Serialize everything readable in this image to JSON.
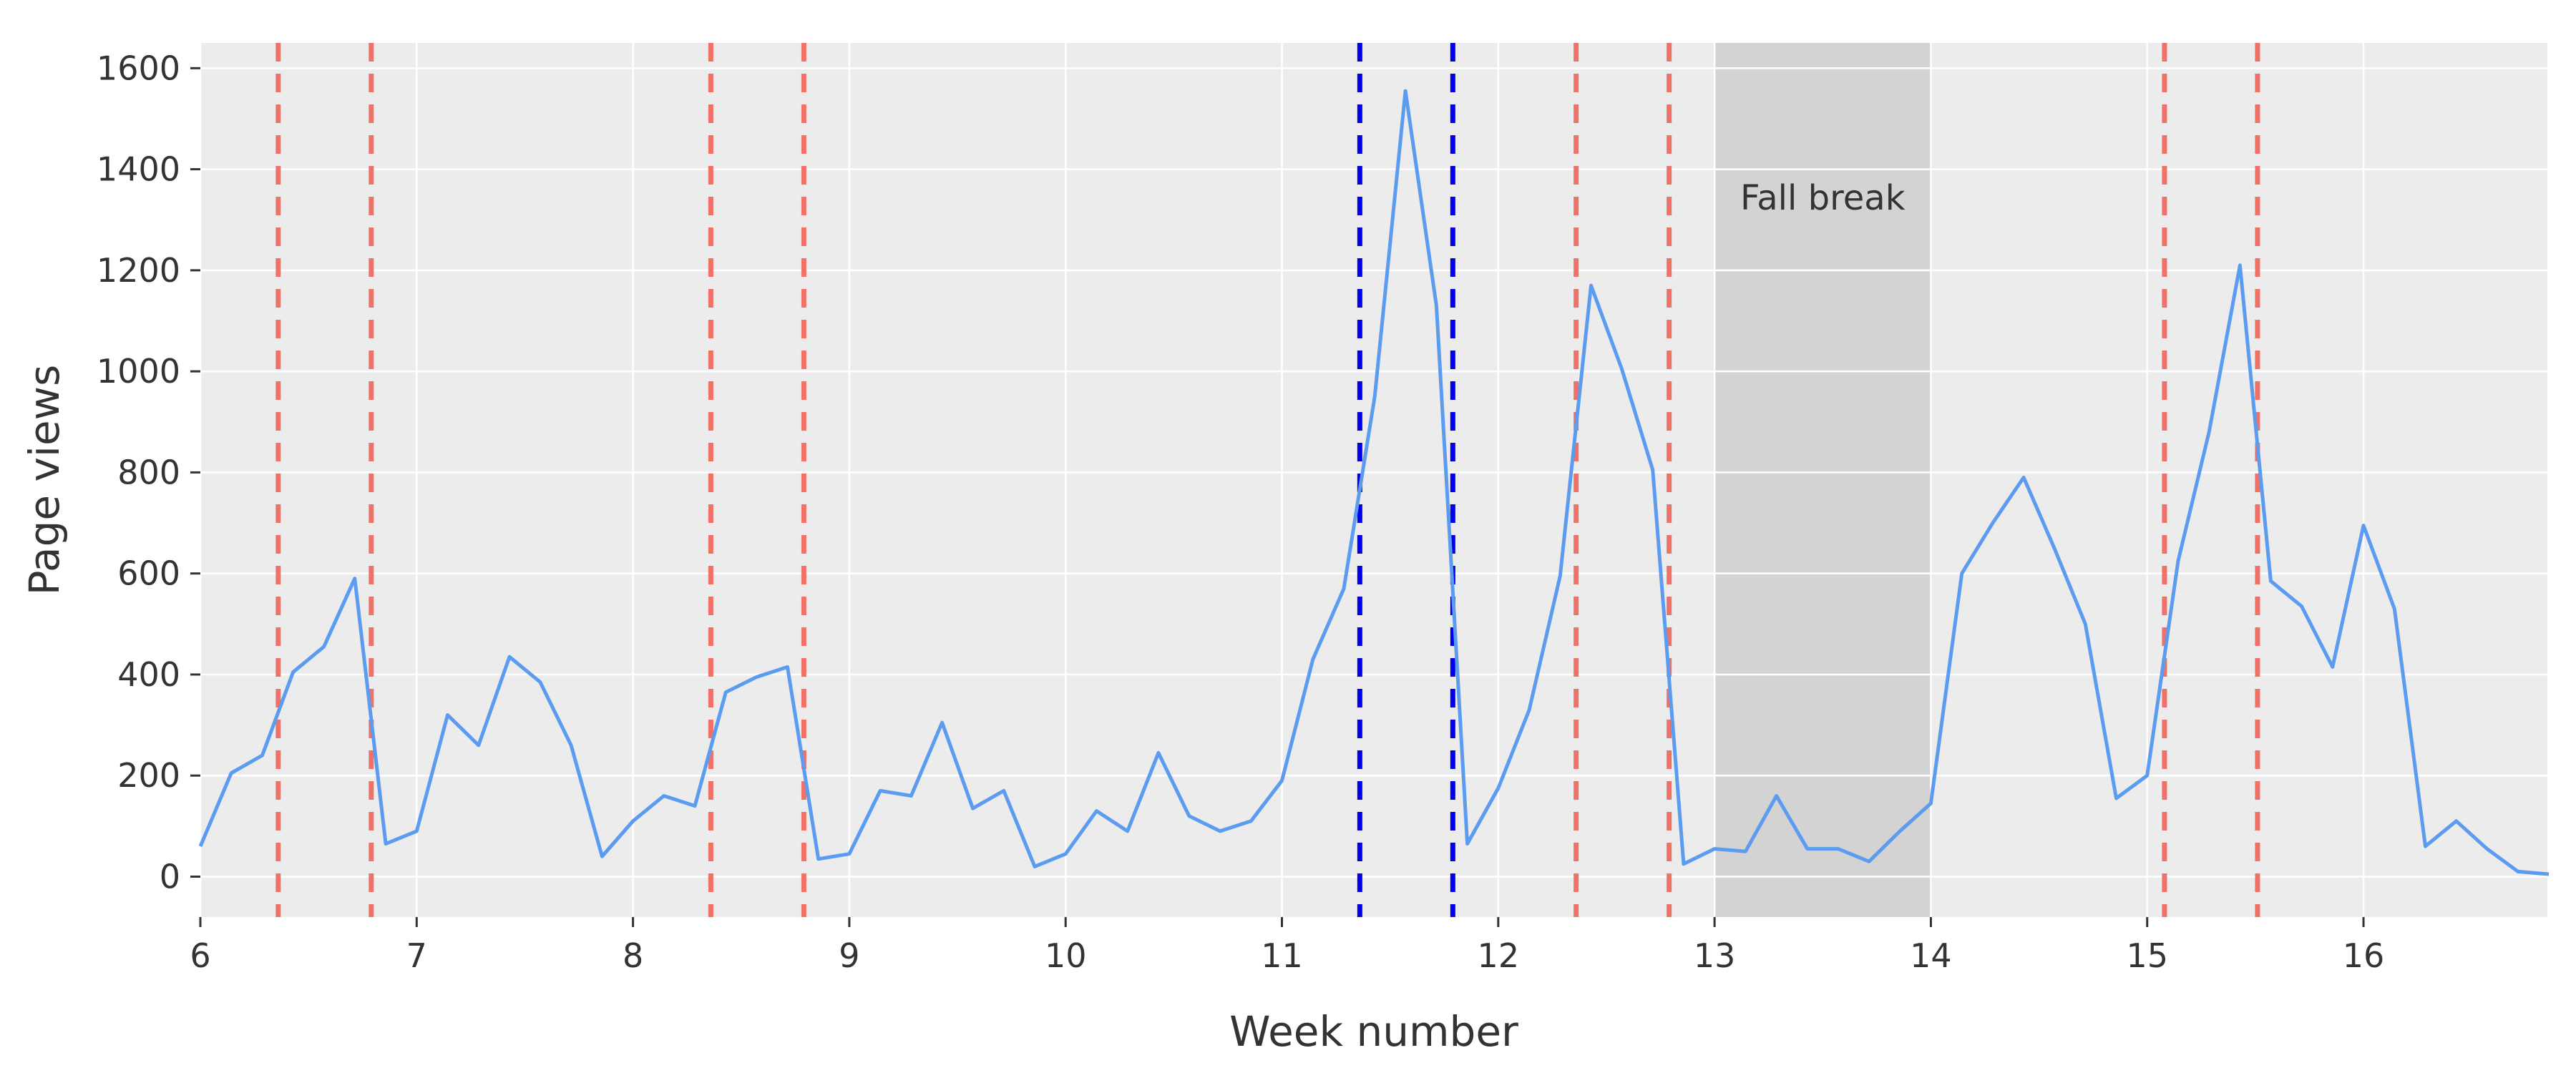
{
  "chart_data": {
    "type": "line",
    "title": "",
    "xlabel": "Week number",
    "ylabel": "Page views",
    "xlim": [
      6,
      16.85
    ],
    "ylim": [
      -80,
      1650
    ],
    "x_ticks": [
      6,
      7,
      8,
      9,
      10,
      11,
      12,
      13,
      14,
      15,
      16
    ],
    "y_ticks": [
      0,
      200,
      400,
      600,
      800,
      1000,
      1200,
      1400,
      1600
    ],
    "grid": true,
    "legend": "none",
    "colors": {
      "panel_background": "#ececec",
      "grid": "#ffffff",
      "line": "#5b9bf0",
      "red_marker": "#f07167",
      "blue_marker": "#0000ee",
      "shade": "#d3d3d3"
    },
    "series": [
      {
        "x": [
          6.0,
          6.143,
          6.286,
          6.429,
          6.571,
          6.714,
          6.857,
          7.0,
          7.143,
          7.286,
          7.429,
          7.571,
          7.714,
          7.857,
          8.0,
          8.143,
          8.286,
          8.429,
          8.571,
          8.714,
          8.857,
          9.0,
          9.143,
          9.286,
          9.429,
          9.571,
          9.714,
          9.857,
          10.0,
          10.143,
          10.286,
          10.429,
          10.571,
          10.714,
          10.857,
          11.0,
          11.143,
          11.286,
          11.429,
          11.571,
          11.714,
          11.857,
          12.0,
          12.143,
          12.286,
          12.429,
          12.571,
          12.714,
          12.857,
          13.0,
          13.143,
          13.286,
          13.429,
          13.571,
          13.714,
          13.857,
          14.0,
          14.143,
          14.286,
          14.429,
          14.571,
          14.714,
          14.857,
          15.0,
          15.143,
          15.286,
          15.429,
          15.571,
          15.714,
          15.857,
          16.0,
          16.143,
          16.286,
          16.429,
          16.571,
          16.714,
          16.857
        ],
        "values": [
          60,
          205,
          240,
          405,
          455,
          590,
          65,
          90,
          320,
          260,
          435,
          385,
          260,
          40,
          110,
          160,
          140,
          365,
          395,
          415,
          35,
          45,
          170,
          160,
          305,
          135,
          170,
          20,
          45,
          130,
          90,
          245,
          120,
          90,
          110,
          190,
          430,
          570,
          950,
          1555,
          1130,
          65,
          175,
          330,
          595,
          1170,
          1005,
          805,
          25,
          55,
          50,
          160,
          55,
          55,
          30,
          90,
          145,
          600,
          700,
          790,
          650,
          500,
          155,
          200,
          625,
          880,
          1210,
          585,
          535,
          415,
          695,
          530,
          60,
          110,
          55,
          10,
          5
        ]
      }
    ],
    "vlines_red": [
      6.36,
      6.79,
      8.36,
      8.79,
      12.36,
      12.79,
      15.08,
      15.51
    ],
    "vlines_blue": [
      11.36,
      11.79
    ],
    "shaded_region": {
      "x0": 13,
      "x1": 14,
      "label": "Fall break",
      "label_y": 1320
    }
  }
}
